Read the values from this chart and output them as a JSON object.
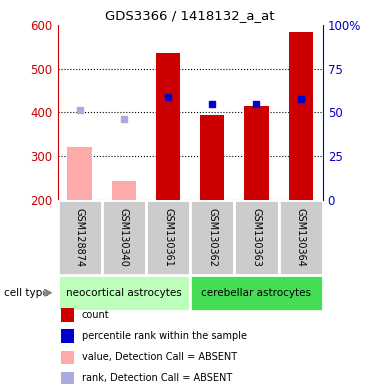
{
  "title": "GDS3366 / 1418132_a_at",
  "samples": [
    "GSM128874",
    "GSM130340",
    "GSM130361",
    "GSM130362",
    "GSM130363",
    "GSM130364"
  ],
  "ylim": [
    200,
    600
  ],
  "ylim_right": [
    0,
    100
  ],
  "yticks_left": [
    200,
    300,
    400,
    500,
    600
  ],
  "yticks_right": [
    0,
    25,
    50,
    75,
    100
  ],
  "ytick_right_labels": [
    "0",
    "25",
    "50",
    "75",
    "100%"
  ],
  "count_values": [
    null,
    null,
    535,
    395,
    415,
    585
  ],
  "percentile_values": [
    null,
    null,
    435,
    418,
    418,
    430
  ],
  "absent_value_values": [
    320,
    243,
    null,
    null,
    null,
    null
  ],
  "absent_rank_values": [
    405,
    385,
    null,
    null,
    null,
    null
  ],
  "bar_color_present": "#cc0000",
  "bar_color_absent_value": "#ffaaaa",
  "dot_color_present": "#0000cc",
  "dot_color_absent_rank": "#aaaadd",
  "cell_type_groups": [
    {
      "label": "neocortical astrocytes",
      "start": 0,
      "end": 3,
      "color": "#bbffbb"
    },
    {
      "label": "cerebellar astrocytes",
      "start": 3,
      "end": 6,
      "color": "#44dd55"
    }
  ],
  "legend_items": [
    {
      "color": "#cc0000",
      "label": "count"
    },
    {
      "color": "#0000cc",
      "label": "percentile rank within the sample"
    },
    {
      "color": "#ffaaaa",
      "label": "value, Detection Call = ABSENT"
    },
    {
      "color": "#aaaadd",
      "label": "rank, Detection Call = ABSENT"
    }
  ],
  "cell_type_label": "cell type",
  "background_color": "#ffffff",
  "ylabel_left_color": "#cc0000",
  "ylabel_right_color": "#0000cc",
  "sample_box_color": "#cccccc",
  "sample_box_edge": "#ffffff"
}
